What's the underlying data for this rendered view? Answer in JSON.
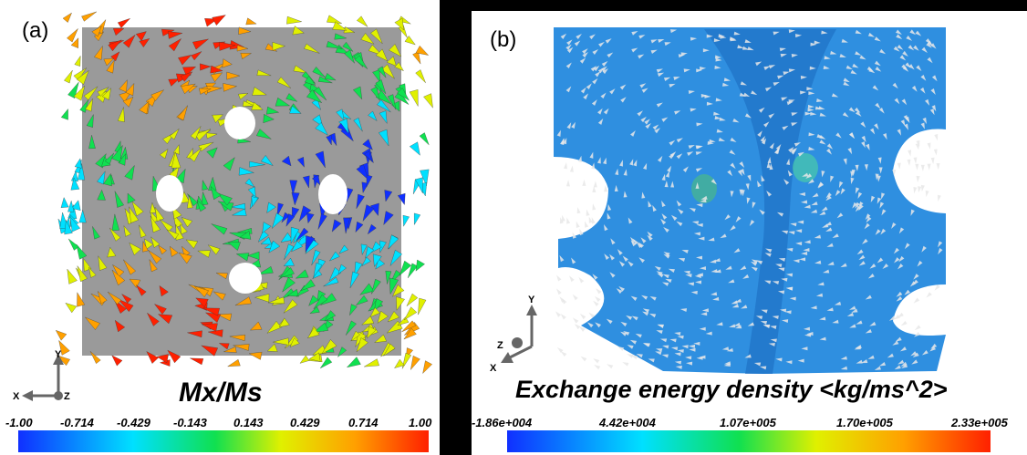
{
  "panel_a": {
    "label": "(a)",
    "colorbar_title": "Mx/Ms",
    "ticks": [
      "-1.00",
      "-0.714",
      "-0.429",
      "-0.143",
      "0.143",
      "0.429",
      "0.714",
      "1.00"
    ],
    "axes": {
      "x": "X",
      "y": "Y",
      "z": "Z"
    }
  },
  "panel_b": {
    "label": "(b)",
    "colorbar_title": "Exchange energy density <kg/ms^2>",
    "ticks": [
      "-1.86e+004",
      "4.42e+004",
      "1.07e+005",
      "1.70e+005",
      "2.33e+005"
    ],
    "axes": {
      "x": "X",
      "y": "Y",
      "z": "Z"
    }
  },
  "colors": {
    "blue": "#1030ff",
    "cyan": "#00e0ff",
    "green": "#10e050",
    "yellow": "#e0f000",
    "orange": "#ffa000",
    "red": "#ff2000",
    "structure_b": "#2f8fe0",
    "arrow_b": "#e8e8e8",
    "frame_gray": "#8a8a8a"
  }
}
